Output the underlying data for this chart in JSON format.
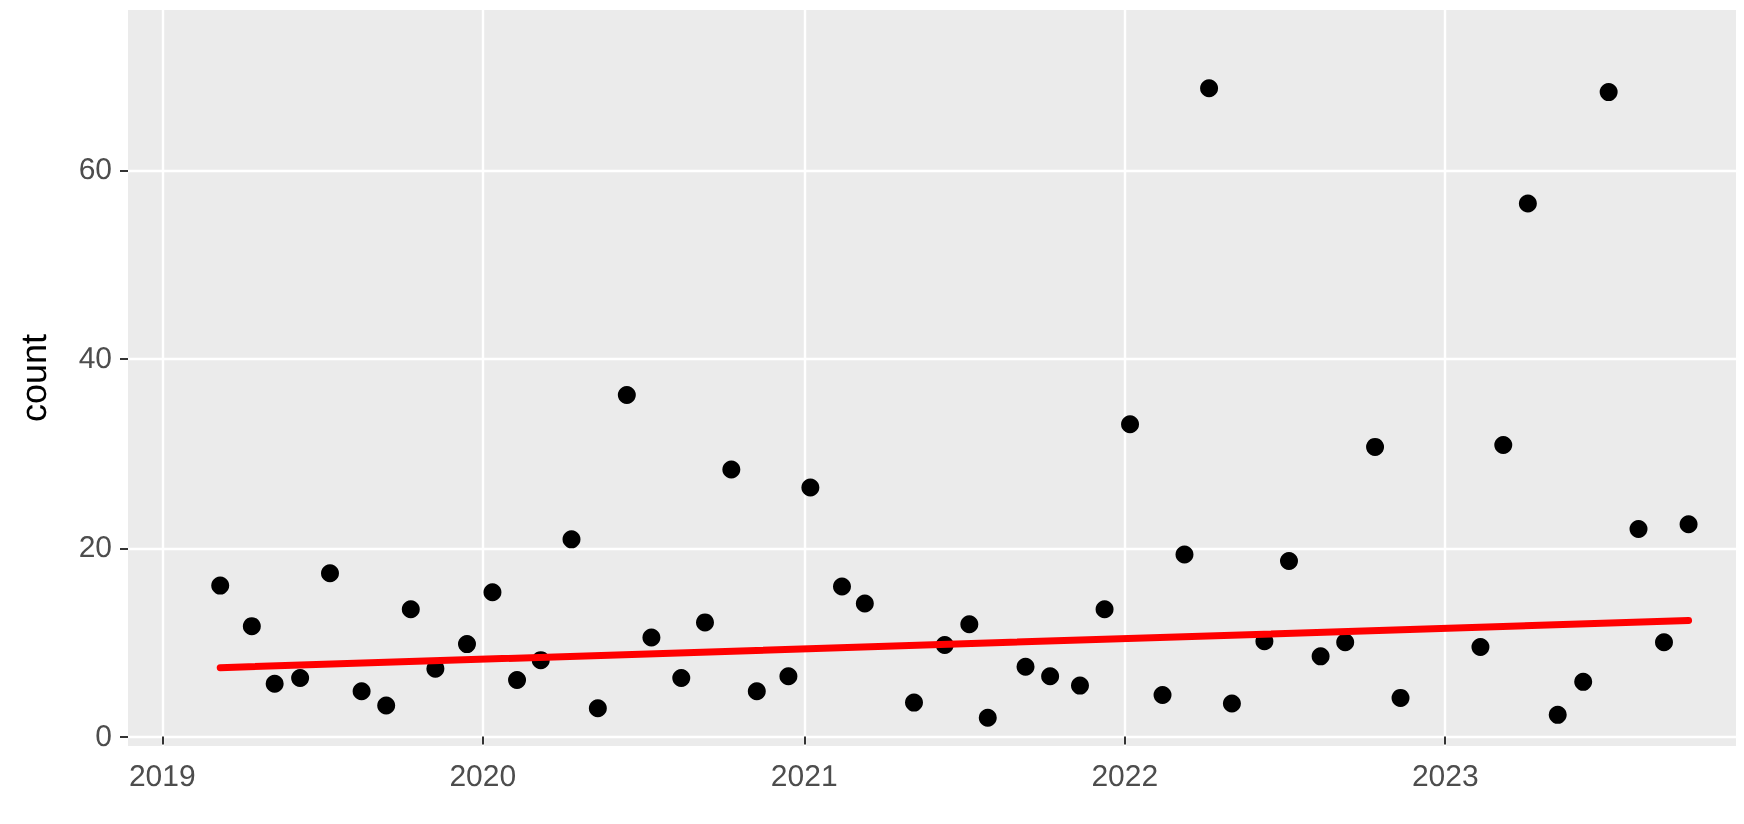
{
  "chart_data": {
    "type": "scatter",
    "ylabel": "count",
    "series": [
      {
        "color": "#000000",
        "marker": "circle",
        "x": [
          "2019-03-08",
          "2019-04-13",
          "2019-05-09",
          "2019-06-07",
          "2019-07-11",
          "2019-08-16",
          "2019-09-13",
          "2019-10-11",
          "2019-11-08",
          "2019-12-14",
          "2020-01-12",
          "2020-02-09",
          "2020-03-07",
          "2020-04-11",
          "2020-05-11",
          "2020-06-13",
          "2020-07-11",
          "2020-08-14",
          "2020-09-10",
          "2020-10-10",
          "2020-11-08",
          "2020-12-14",
          "2021-01-08",
          "2021-02-13",
          "2021-03-11",
          "2021-05-06",
          "2021-06-10",
          "2021-07-08",
          "2021-07-29",
          "2021-09-10",
          "2021-10-08",
          "2021-11-11",
          "2021-12-09",
          "2022-01-07",
          "2022-02-13",
          "2022-03-10",
          "2022-04-07",
          "2022-05-03",
          "2022-06-09",
          "2022-07-07",
          "2022-08-12",
          "2022-09-09",
          "2022-10-13",
          "2022-11-11",
          "2023-02-10",
          "2023-03-08",
          "2023-04-05",
          "2023-05-09",
          "2023-06-07",
          "2023-07-06",
          "2023-08-09",
          "2023-09-07",
          "2023-10-05"
        ],
        "values": [
          16.0,
          11.7,
          5.6,
          6.2,
          17.3,
          4.8,
          3.3,
          13.5,
          7.2,
          9.8,
          15.3,
          6.0,
          8.1,
          20.9,
          3.0,
          36.2,
          10.5,
          6.2,
          12.1,
          28.3,
          4.8,
          6.4,
          26.4,
          15.9,
          14.1,
          3.6,
          9.7,
          11.9,
          2.0,
          7.4,
          6.4,
          5.4,
          13.5,
          33.1,
          4.4,
          19.3,
          68.7,
          3.5,
          10.1,
          18.6,
          8.5,
          10.0,
          30.7,
          4.1,
          9.5,
          30.9,
          56.5,
          2.3,
          5.8,
          68.3,
          22.0,
          10.0,
          22.5
        ]
      },
      {
        "type": "line",
        "marker": "none",
        "color": "#ff0000",
        "x": [
          "2019-03-08",
          "2023-10-05"
        ],
        "values": [
          7.3,
          12.3
        ]
      }
    ],
    "xlim": [
      "2018-11-23",
      "2023-11-28"
    ],
    "xticks": [
      {
        "value": "2019",
        "label": "2019"
      },
      {
        "value": "2020",
        "label": "2020"
      },
      {
        "value": "2021",
        "label": "2021"
      },
      {
        "value": "2022",
        "label": "2022"
      },
      {
        "value": "2023",
        "label": "2023"
      }
    ],
    "ylim": [
      -1,
      77
    ],
    "yticks": [
      0,
      20,
      40,
      60
    ],
    "grid": true
  }
}
